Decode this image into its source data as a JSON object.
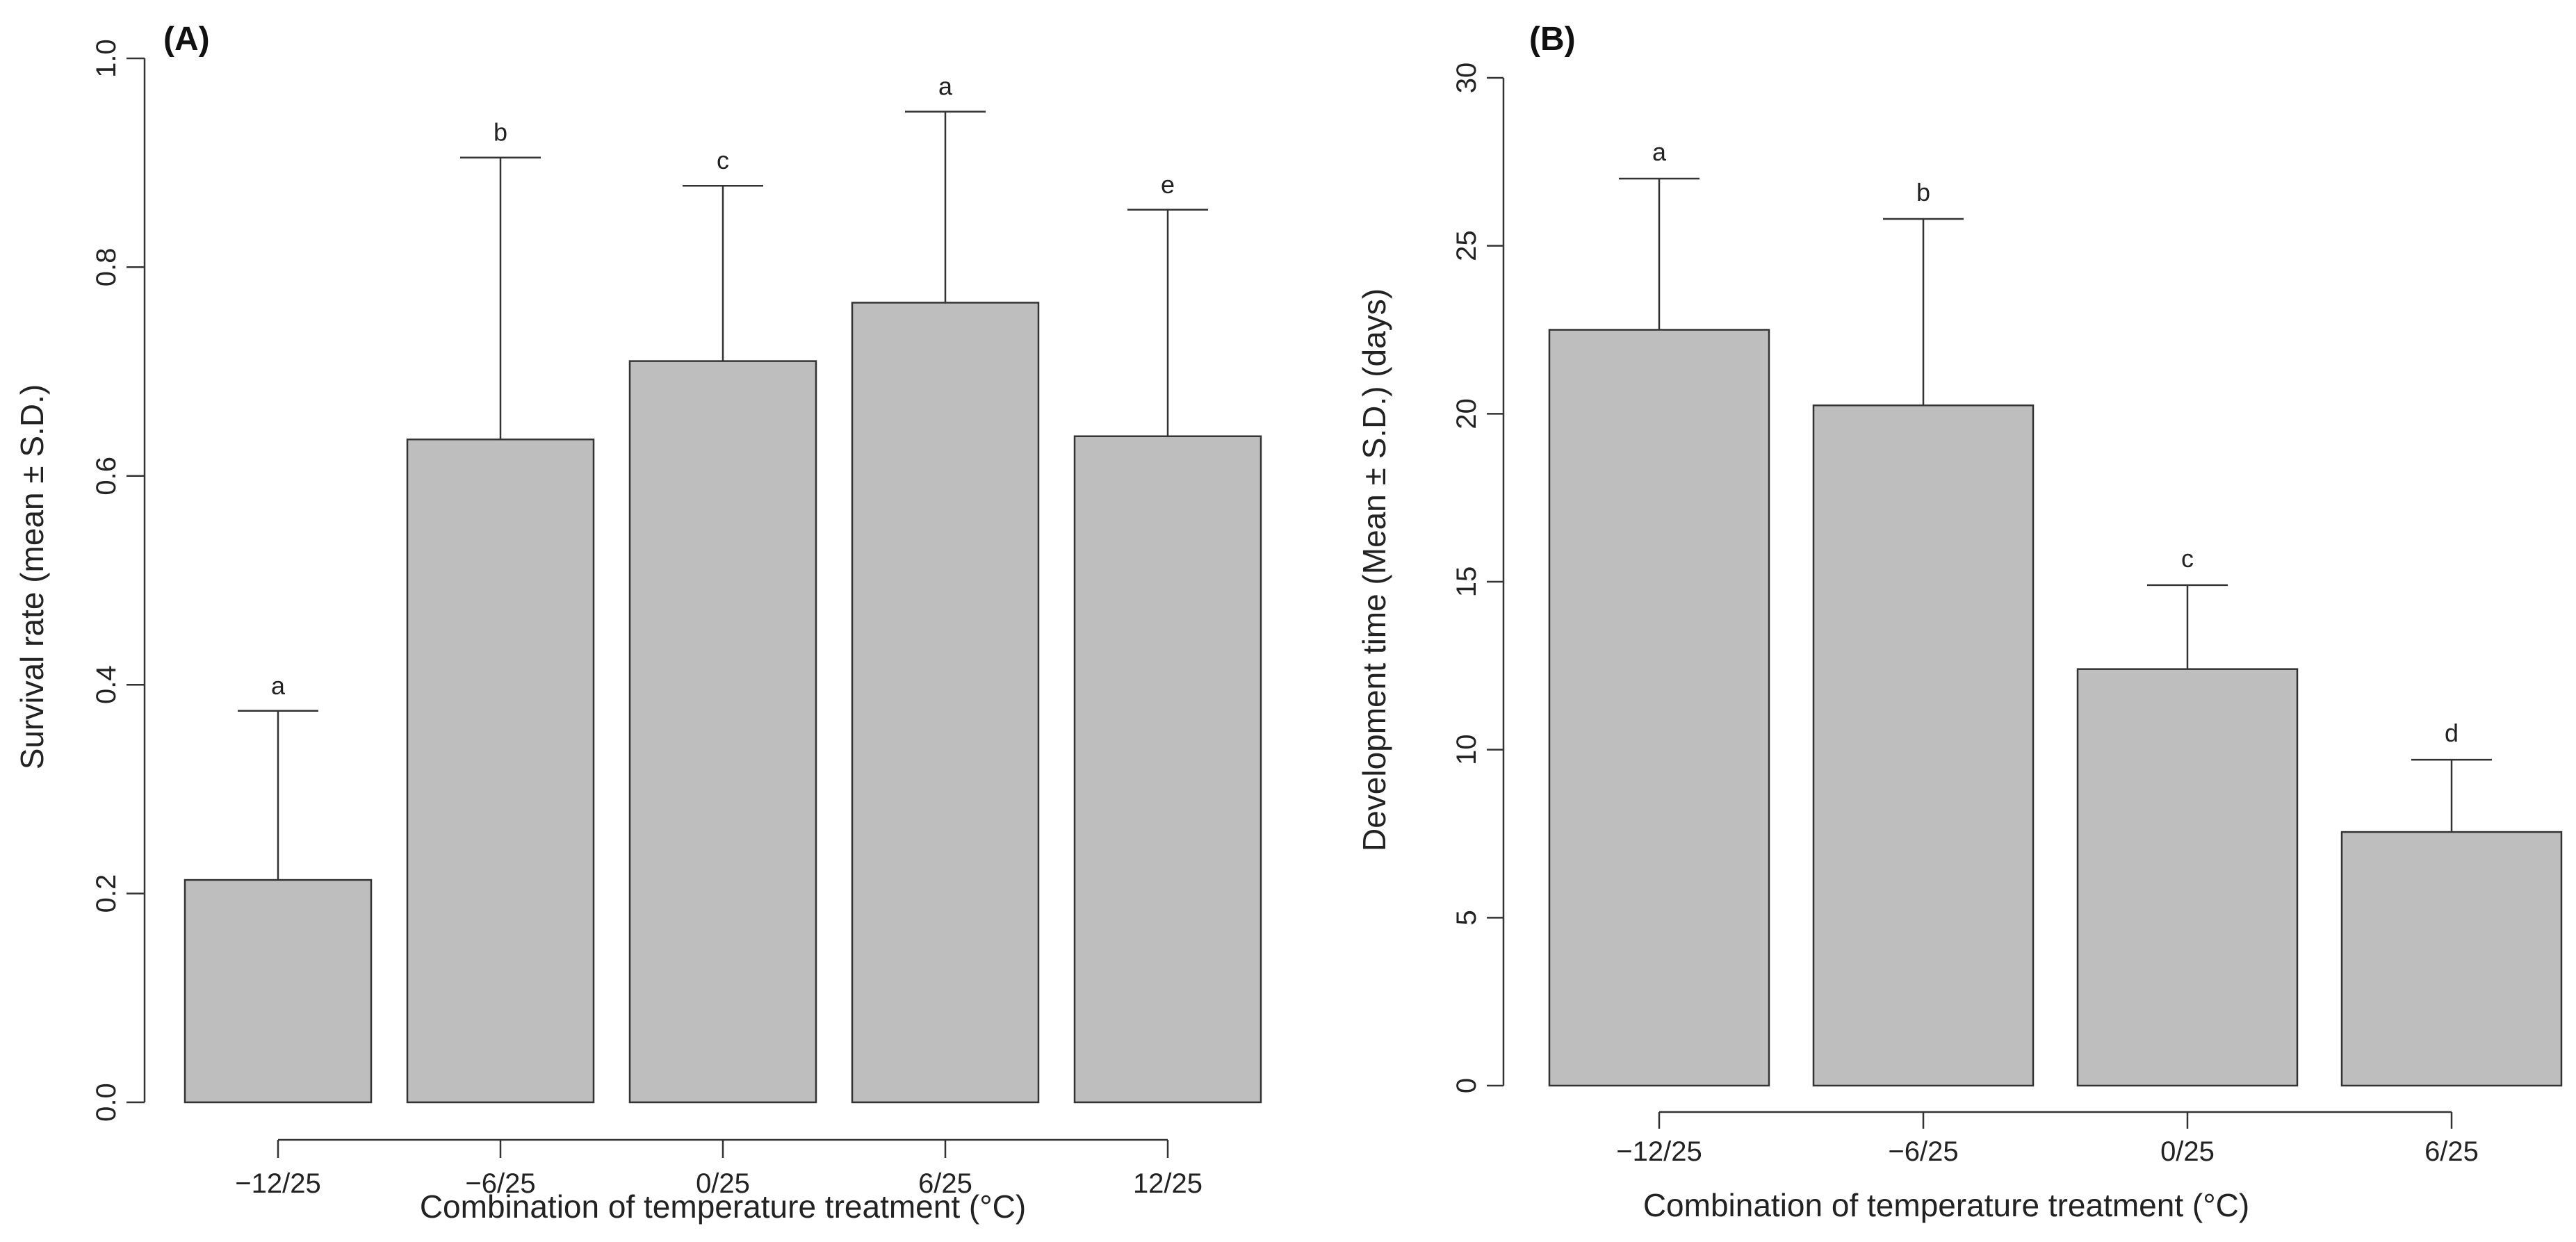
{
  "chart_data": [
    {
      "type": "bar",
      "panel_label": "(A)",
      "title": "",
      "xlabel": "Combination of temperature treatment (°C)",
      "ylabel": "Survival rate (mean ± S.D.)",
      "ylim": [
        0,
        1.0
      ],
      "yticks": [
        "0.0",
        "0.2",
        "0.4",
        "0.6",
        "0.8",
        "1.0"
      ],
      "categories": [
        "−12/25",
        "−6/25",
        "0/25",
        "6/25",
        "12/25"
      ],
      "values": [
        0.213,
        0.635,
        0.71,
        0.766,
        0.638
      ],
      "errors": [
        0.162,
        0.27,
        0.168,
        0.183,
        0.217
      ],
      "significance": [
        "a",
        "b",
        "c",
        "a",
        "e"
      ],
      "grid": false
    },
    {
      "type": "bar",
      "panel_label": "(B)",
      "title": "",
      "xlabel": "Combination of temperature treatment (°C)",
      "ylabel": "Development time (Mean ± S.D.) (days)",
      "ylim": [
        0,
        30
      ],
      "yticks": [
        "0",
        "5",
        "10",
        "15",
        "20",
        "25",
        "30"
      ],
      "categories": [
        "−12/25",
        "−6/25",
        "0/25",
        "6/25"
      ],
      "values": [
        22.5,
        20.25,
        12.4,
        7.55
      ],
      "errors": [
        4.5,
        5.55,
        2.5,
        2.15
      ],
      "significance": [
        "a",
        "b",
        "c",
        "d"
      ],
      "grid": false
    }
  ]
}
